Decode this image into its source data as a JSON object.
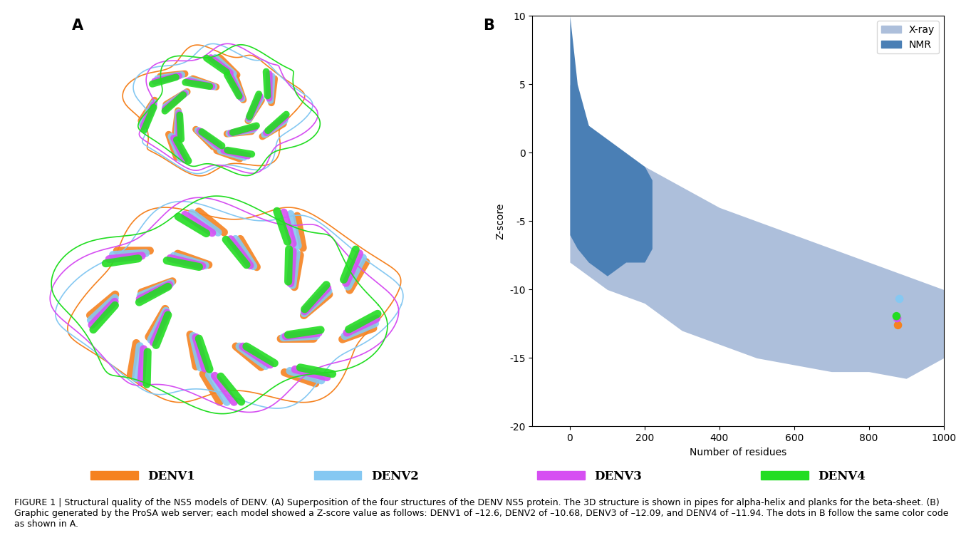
{
  "panel_labels": [
    "A",
    "B"
  ],
  "chart_data": {
    "type": "scatter",
    "xlabel": "Number of residues",
    "ylabel": "Z-score",
    "xlim": [
      -100,
      1000
    ],
    "ylim": [
      -20,
      10
    ],
    "xticks": [
      0,
      200,
      400,
      600,
      800,
      1000
    ],
    "yticks": [
      -20,
      -15,
      -10,
      -5,
      0,
      5,
      10
    ],
    "legend": "upper right",
    "series": [
      {
        "name": "X-ray",
        "type": "area",
        "color": "#adbfdb",
        "x": [
          0,
          50,
          100,
          200,
          300,
          400,
          500,
          600,
          700,
          800,
          900,
          1000
        ],
        "upper": [
          5,
          2,
          0,
          -1,
          -2.5,
          -4,
          -5,
          -6,
          -7,
          -8,
          -9,
          -10
        ],
        "lower": [
          -8,
          -9,
          -10,
          -11,
          -13,
          -14,
          -15,
          -15.5,
          -16,
          -16,
          -16.5,
          -15
        ]
      },
      {
        "name": "NMR",
        "type": "area",
        "color": "#4a7fb5",
        "x": [
          0,
          20,
          50,
          100,
          150,
          200,
          220
        ],
        "upper": [
          10,
          5,
          2,
          1,
          0,
          -1,
          -2
        ],
        "lower": [
          -6,
          -7,
          -8,
          -9,
          -8,
          -8,
          -7
        ]
      },
      {
        "name": "DENV1",
        "type": "scatter",
        "color": "#f58220",
        "x": [
          878
        ],
        "values": [
          -12.6
        ]
      },
      {
        "name": "DENV2",
        "type": "scatter",
        "color": "#85c8f2",
        "x": [
          882
        ],
        "values": [
          -10.68
        ]
      },
      {
        "name": "DENV3",
        "type": "scatter",
        "color": "#d64ff2",
        "x": [
          876
        ],
        "values": [
          -12.09
        ]
      },
      {
        "name": "DENV4",
        "type": "scatter",
        "color": "#22dd22",
        "x": [
          874
        ],
        "values": [
          -11.94
        ]
      }
    ]
  },
  "caption": "FIGURE 1 | Structural quality of the NS5 models of DENV. (A) Superposition of the four structures of the DENV NS5 protein. The 3D structure is shown in pipes for alpha-helix and planks for the beta-sheet. (B) Graphic generated by the ProSA web server; each model showed a Z-score value as follows: DENV1 of –12.6, DENV2 of –10.68, DENV3 of –12.09, and DENV4 of –11.94. The dots in B follow the same color code as shown in A."
}
